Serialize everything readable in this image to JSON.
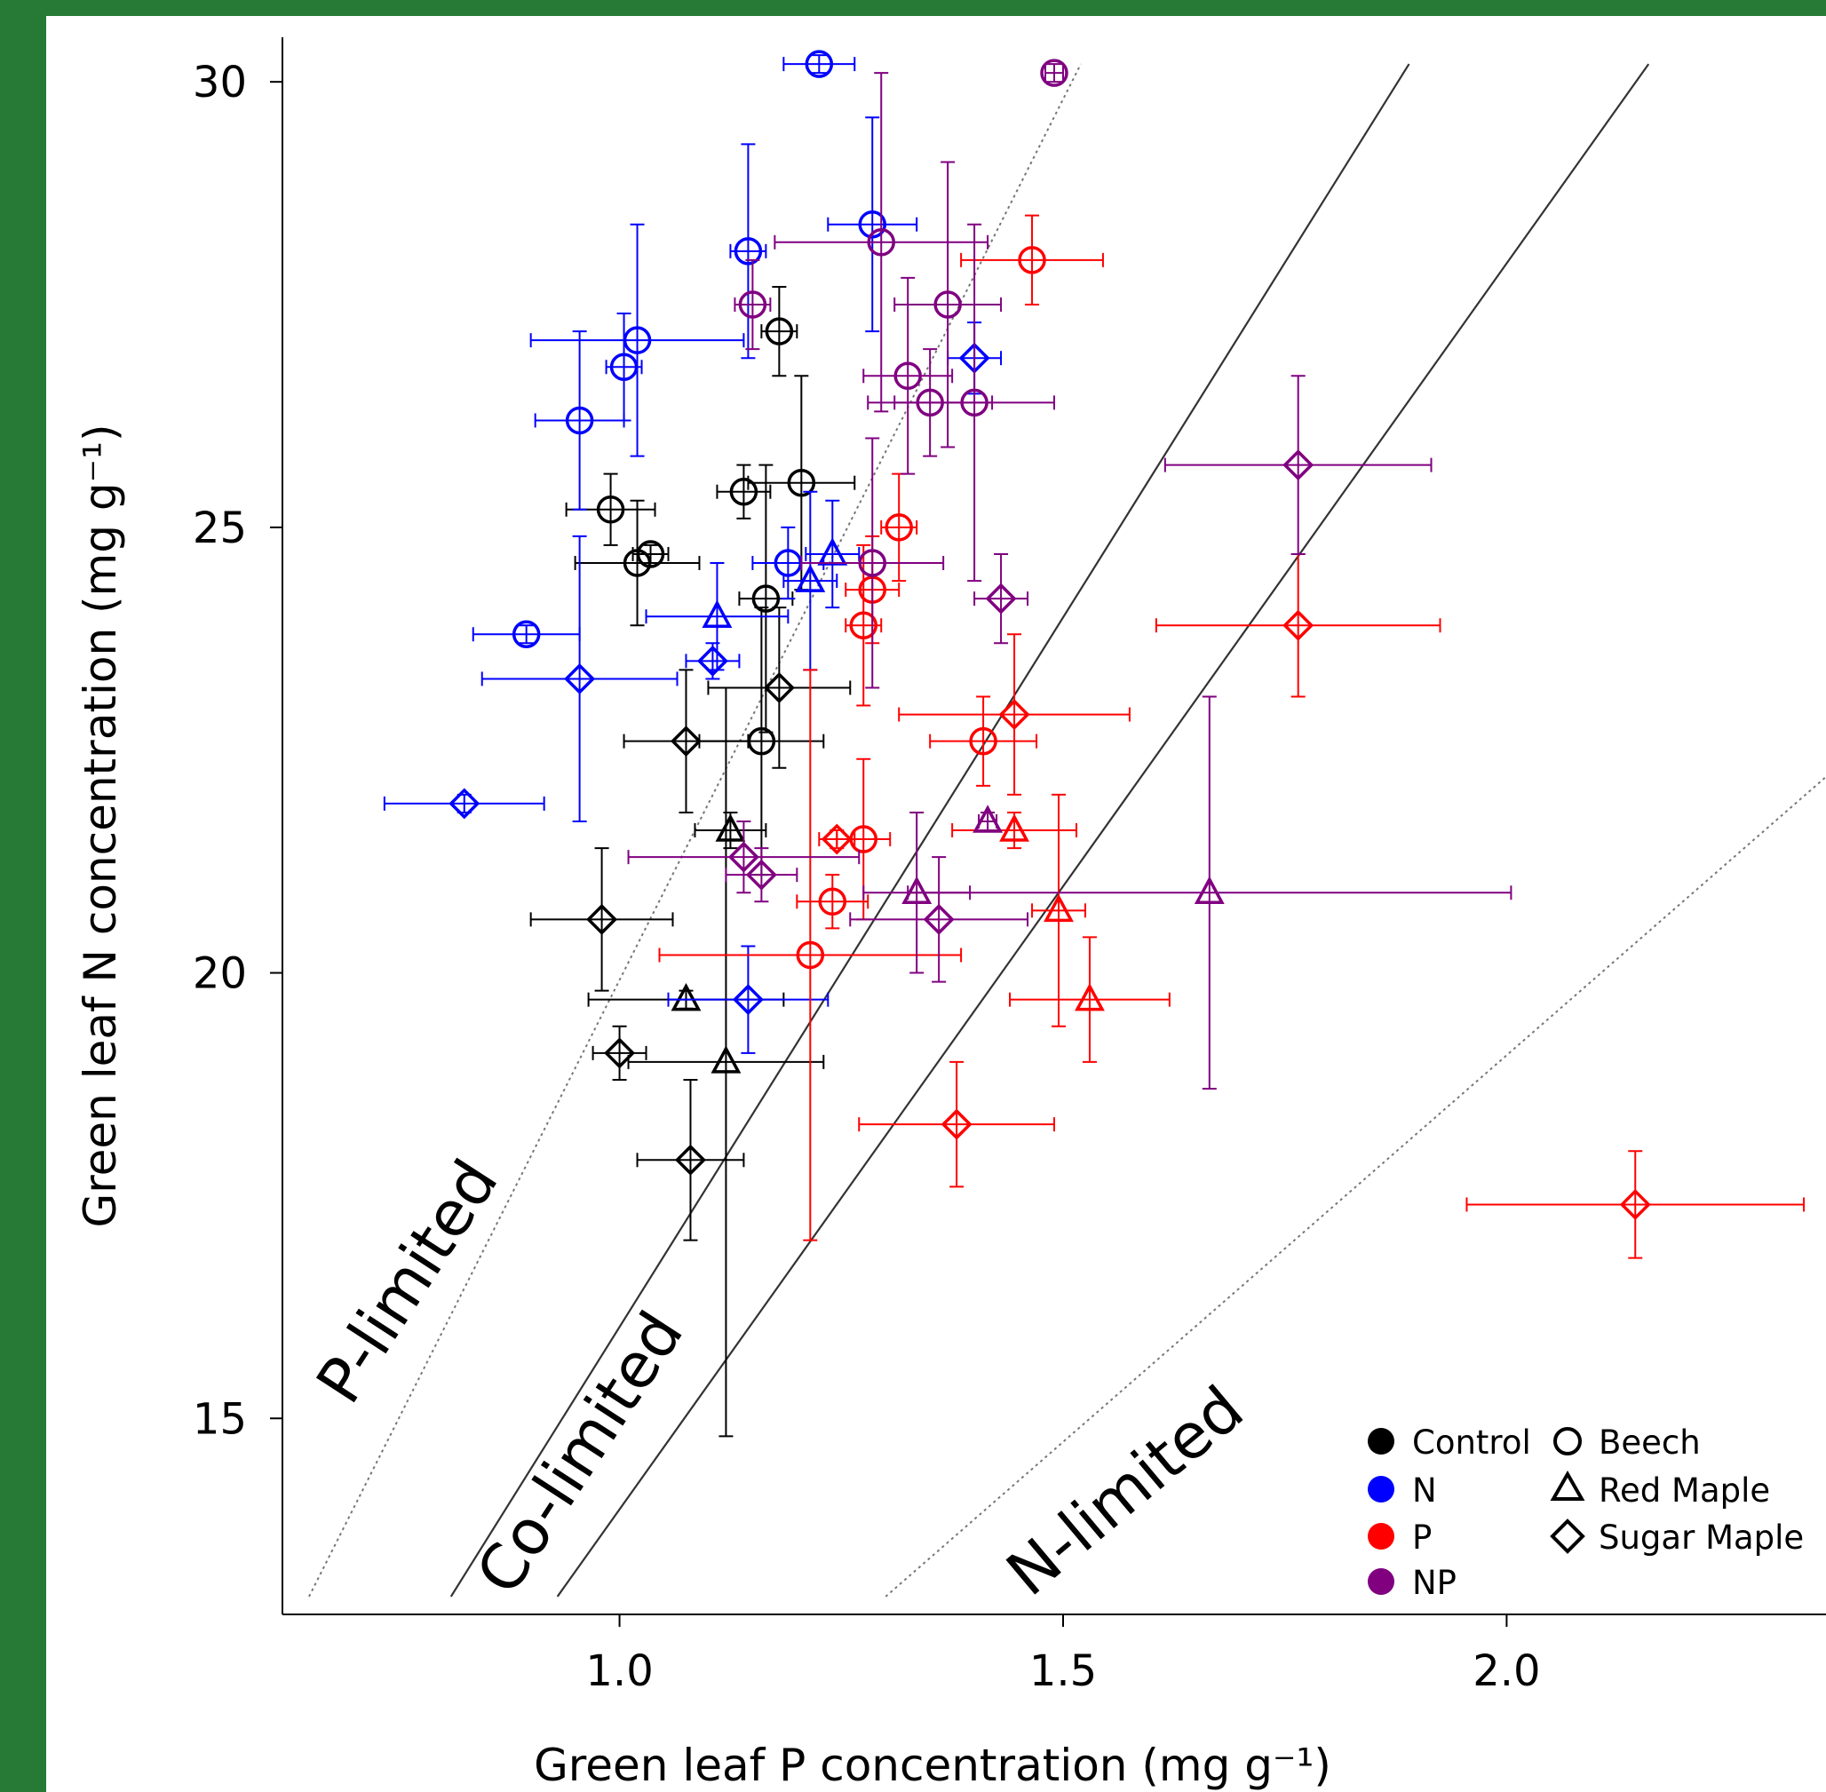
{
  "chart_data": {
    "type": "scatter",
    "xlabel": "Green leaf P concentration (mg g⁻¹)",
    "ylabel": "Green leaf N concentration (mg g⁻¹)",
    "xlim": [
      0.62,
      2.36
    ],
    "ylim": [
      12.8,
      30.5
    ],
    "x_ticks": [
      1.0,
      1.5,
      2.0
    ],
    "y_ticks": [
      15,
      20,
      25,
      30
    ],
    "x_tick_labels": [
      "1.0",
      "1.5",
      "2.0"
    ],
    "y_tick_labels": [
      "15",
      "20",
      "25",
      "30"
    ],
    "grid": false,
    "legend_position": "bottom-right",
    "colors": {
      "Control": "#000000",
      "N": "#0000ff",
      "P": "#ff0000",
      "NP": "#800080"
    },
    "legend": {
      "treatments": [
        "Control",
        "N",
        "P",
        "NP"
      ],
      "species": [
        {
          "name": "Beech",
          "marker": "circle"
        },
        {
          "name": "Red Maple",
          "marker": "triangle"
        },
        {
          "name": "Sugar Maple",
          "marker": "diamond"
        }
      ]
    },
    "zone_labels": [
      "P-limited",
      "Co-limited",
      "N-limited"
    ],
    "reference_lines": [
      {
        "kind": "dotted",
        "from": [
          0.65,
          13.0
        ],
        "to": [
          1.52,
          30.2
        ]
      },
      {
        "kind": "solid",
        "from": [
          0.81,
          13.0
        ],
        "to": [
          1.89,
          30.2
        ]
      },
      {
        "kind": "solid",
        "from": [
          0.93,
          13.0
        ],
        "to": [
          2.16,
          30.2
        ]
      },
      {
        "kind": "dotted",
        "from": [
          1.3,
          13.0
        ],
        "to": [
          2.36,
          22.2
        ]
      }
    ],
    "points": [
      {
        "t": "Control",
        "s": "circle",
        "x": 0.99,
        "y": 25.2,
        "xe": 0.05,
        "ye": 0.4
      },
      {
        "t": "Control",
        "s": "circle",
        "x": 1.02,
        "y": 24.6,
        "xe": 0.07,
        "ye": 0.7
      },
      {
        "t": "Control",
        "s": "circle",
        "x": 1.035,
        "y": 24.7,
        "xe": 0.02,
        "ye": 0.1
      },
      {
        "t": "Control",
        "s": "circle",
        "x": 1.14,
        "y": 25.4,
        "xe": 0.03,
        "ye": 0.3
      },
      {
        "t": "Control",
        "s": "circle",
        "x": 1.205,
        "y": 25.5,
        "xe": 0.06,
        "ye": 1.2
      },
      {
        "t": "Control",
        "s": "circle",
        "x": 1.18,
        "y": 27.2,
        "xe": 0.02,
        "ye": 0.5
      },
      {
        "t": "Control",
        "s": "circle",
        "x": 1.165,
        "y": 24.2,
        "xe": 0.03,
        "ye": 1.5
      },
      {
        "t": "Control",
        "s": "circle",
        "x": 1.16,
        "y": 22.6,
        "xe": 0.07,
        "ye": 1.5
      },
      {
        "t": "Control",
        "s": "triangle",
        "x": 1.125,
        "y": 21.6,
        "xe": 0.04,
        "ye": 0.2
      },
      {
        "t": "Control",
        "s": "triangle",
        "x": 1.075,
        "y": 19.7,
        "xe": 0.11,
        "ye": 0.1
      },
      {
        "t": "Control",
        "s": "triangle",
        "x": 1.12,
        "y": 19.0,
        "xe": 0.11,
        "ye": 4.2
      },
      {
        "t": "Control",
        "s": "diamond",
        "x": 1.18,
        "y": 23.2,
        "xe": 0.08,
        "ye": 0.9
      },
      {
        "t": "Control",
        "s": "diamond",
        "x": 1.075,
        "y": 22.6,
        "xe": 0.07,
        "ye": 0.8
      },
      {
        "t": "Control",
        "s": "diamond",
        "x": 0.98,
        "y": 20.6,
        "xe": 0.08,
        "ye": 0.8
      },
      {
        "t": "Control",
        "s": "diamond",
        "x": 1.0,
        "y": 19.1,
        "xe": 0.03,
        "ye": 0.3
      },
      {
        "t": "Control",
        "s": "diamond",
        "x": 1.08,
        "y": 17.9,
        "xe": 0.06,
        "ye": 0.9
      },
      {
        "t": "N",
        "s": "circle",
        "x": 1.225,
        "y": 30.2,
        "xe": 0.04,
        "ye": 0.1
      },
      {
        "t": "N",
        "s": "circle",
        "x": 1.285,
        "y": 28.4,
        "xe": 0.05,
        "ye": 1.2
      },
      {
        "t": "N",
        "s": "circle",
        "x": 1.145,
        "y": 28.1,
        "xe": 0.02,
        "ye": 1.2
      },
      {
        "t": "N",
        "s": "circle",
        "x": 1.02,
        "y": 27.1,
        "xe": 0.12,
        "ye": 1.3
      },
      {
        "t": "N",
        "s": "circle",
        "x": 1.005,
        "y": 26.8,
        "xe": 0.02,
        "ye": 0.6
      },
      {
        "t": "N",
        "s": "circle",
        "x": 0.955,
        "y": 26.2,
        "xe": 0.05,
        "ye": 1.0
      },
      {
        "t": "N",
        "s": "circle",
        "x": 1.19,
        "y": 24.6,
        "xe": 0.04,
        "ye": 0.4
      },
      {
        "t": "N",
        "s": "circle",
        "x": 0.895,
        "y": 23.8,
        "xe": 0.06,
        "ye": 0.1
      },
      {
        "t": "N",
        "s": "triangle",
        "x": 1.24,
        "y": 24.7,
        "xe": 0.03,
        "ye": 0.6
      },
      {
        "t": "N",
        "s": "triangle",
        "x": 1.215,
        "y": 24.4,
        "xe": 0.03,
        "ye": 1.0
      },
      {
        "t": "N",
        "s": "triangle",
        "x": 1.11,
        "y": 24.0,
        "xe": 0.08,
        "ye": 0.6
      },
      {
        "t": "N",
        "s": "diamond",
        "x": 1.4,
        "y": 26.9,
        "xe": 0.03,
        "ye": 0.4
      },
      {
        "t": "N",
        "s": "diamond",
        "x": 1.105,
        "y": 23.5,
        "xe": 0.03,
        "ye": 0.2
      },
      {
        "t": "N",
        "s": "diamond",
        "x": 0.955,
        "y": 23.3,
        "xe": 0.11,
        "ye": 1.6
      },
      {
        "t": "N",
        "s": "diamond",
        "x": 0.825,
        "y": 21.9,
        "xe": 0.09,
        "ye": 0.1
      },
      {
        "t": "N",
        "s": "diamond",
        "x": 1.145,
        "y": 19.7,
        "xe": 0.09,
        "ye": 0.6
      },
      {
        "t": "P",
        "s": "circle",
        "x": 1.465,
        "y": 28.0,
        "xe": 0.08,
        "ye": 0.5
      },
      {
        "t": "P",
        "s": "circle",
        "x": 1.315,
        "y": 25.0,
        "xe": 0.02,
        "ye": 0.6
      },
      {
        "t": "P",
        "s": "circle",
        "x": 1.285,
        "y": 24.3,
        "xe": 0.03,
        "ye": 0.6
      },
      {
        "t": "P",
        "s": "circle",
        "x": 1.275,
        "y": 23.9,
        "xe": 0.02,
        "ye": 0.9
      },
      {
        "t": "P",
        "s": "circle",
        "x": 1.41,
        "y": 22.6,
        "xe": 0.06,
        "ye": 0.5
      },
      {
        "t": "P",
        "s": "circle",
        "x": 1.275,
        "y": 21.5,
        "xe": 0.03,
        "ye": 0.9
      },
      {
        "t": "P",
        "s": "circle",
        "x": 1.24,
        "y": 20.8,
        "xe": 0.04,
        "ye": 0.3
      },
      {
        "t": "P",
        "s": "circle",
        "x": 1.215,
        "y": 20.2,
        "xe": 0.17,
        "ye": 3.2
      },
      {
        "t": "P",
        "s": "triangle",
        "x": 1.445,
        "y": 21.6,
        "xe": 0.07,
        "ye": 0.2
      },
      {
        "t": "P",
        "s": "triangle",
        "x": 1.495,
        "y": 20.7,
        "xe": 0.03,
        "ye": 1.3
      },
      {
        "t": "P",
        "s": "triangle",
        "x": 1.53,
        "y": 19.7,
        "xe": 0.09,
        "ye": 0.7
      },
      {
        "t": "P",
        "s": "diamond",
        "x": 1.445,
        "y": 22.9,
        "xe": 0.13,
        "ye": 0.9
      },
      {
        "t": "P",
        "s": "diamond",
        "x": 1.245,
        "y": 21.5,
        "xe": 0.02,
        "ye": 0.1
      },
      {
        "t": "P",
        "s": "diamond",
        "x": 1.765,
        "y": 23.9,
        "xe": 0.16,
        "ye": 0.8
      },
      {
        "t": "P",
        "s": "diamond",
        "x": 1.38,
        "y": 18.3,
        "xe": 0.11,
        "ye": 0.7
      },
      {
        "t": "P",
        "s": "diamond",
        "x": 2.145,
        "y": 17.4,
        "xe": 0.19,
        "ye": 0.6
      },
      {
        "t": "NP",
        "s": "circle",
        "x": 1.49,
        "y": 30.1,
        "xe": 0.01,
        "ye": 0.1
      },
      {
        "t": "NP",
        "s": "circle",
        "x": 1.295,
        "y": 28.2,
        "xe": 0.12,
        "ye": 1.9
      },
      {
        "t": "NP",
        "s": "circle",
        "x": 1.15,
        "y": 27.5,
        "xe": 0.02,
        "ye": 0.5
      },
      {
        "t": "NP",
        "s": "circle",
        "x": 1.37,
        "y": 27.5,
        "xe": 0.06,
        "ye": 1.6
      },
      {
        "t": "NP",
        "s": "circle",
        "x": 1.325,
        "y": 26.7,
        "xe": 0.05,
        "ye": 1.1
      },
      {
        "t": "NP",
        "s": "circle",
        "x": 1.35,
        "y": 26.4,
        "xe": 0.07,
        "ye": 0.6
      },
      {
        "t": "NP",
        "s": "circle",
        "x": 1.4,
        "y": 26.4,
        "xe": 0.09,
        "ye": 2.0
      },
      {
        "t": "NP",
        "s": "circle",
        "x": 1.285,
        "y": 24.6,
        "xe": 0.08,
        "ye": 1.4
      },
      {
        "t": "NP",
        "s": "triangle",
        "x": 1.415,
        "y": 21.7,
        "xe": 0.01,
        "ye": 0.1
      },
      {
        "t": "NP",
        "s": "triangle",
        "x": 1.335,
        "y": 20.9,
        "xe": 0.06,
        "ye": 0.9
      },
      {
        "t": "NP",
        "s": "triangle",
        "x": 1.665,
        "y": 20.9,
        "xe": 0.34,
        "ye": 2.2
      },
      {
        "t": "NP",
        "s": "diamond",
        "x": 1.765,
        "y": 25.7,
        "xe": 0.15,
        "ye": 1.0
      },
      {
        "t": "NP",
        "s": "diamond",
        "x": 1.43,
        "y": 24.2,
        "xe": 0.03,
        "ye": 0.5
      },
      {
        "t": "NP",
        "s": "diamond",
        "x": 1.14,
        "y": 21.3,
        "xe": 0.13,
        "ye": 0.4
      },
      {
        "t": "NP",
        "s": "diamond",
        "x": 1.16,
        "y": 21.1,
        "xe": 0.04,
        "ye": 0.3
      },
      {
        "t": "NP",
        "s": "diamond",
        "x": 1.36,
        "y": 20.6,
        "xe": 0.1,
        "ye": 0.7
      }
    ]
  }
}
